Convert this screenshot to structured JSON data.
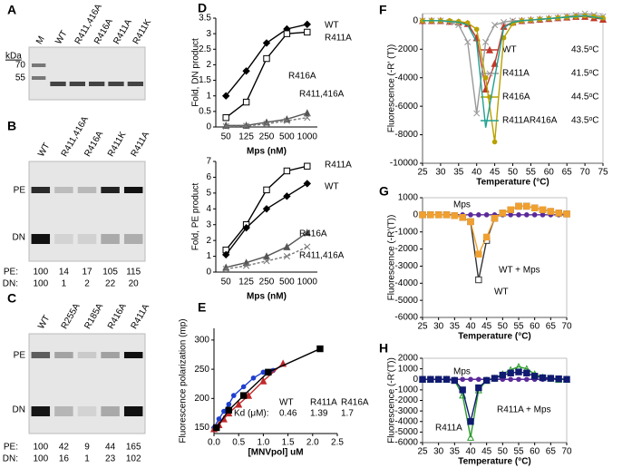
{
  "gels": [
    {
      "panel": "A",
      "lanes": [
        "M",
        "WT",
        "R411,416A",
        "R416A",
        "R411A",
        "R411K"
      ],
      "kda_label": "kDa",
      "markers": [
        70,
        55
      ]
    },
    {
      "panel": "B",
      "lanes": [
        "WT",
        "R411,416A",
        "R416A",
        "R411K",
        "R411A"
      ],
      "bands": [
        "PE",
        "DN"
      ],
      "rows": [
        {
          "label": "PE:",
          "values": [
            100,
            14,
            17,
            105,
            115
          ]
        },
        {
          "label": "DN:",
          "values": [
            100,
            1,
            2,
            22,
            20
          ]
        }
      ]
    },
    {
      "panel": "C",
      "lanes": [
        "WT",
        "R255A",
        "R185A",
        "R416A",
        "R411A"
      ],
      "bands": [
        "PE",
        "DN"
      ],
      "rows": [
        {
          "label": "PE:",
          "values": [
            100,
            42,
            9,
            44,
            165
          ]
        },
        {
          "label": "DN:",
          "values": [
            100,
            16,
            1,
            23,
            102
          ]
        }
      ]
    }
  ],
  "chart_data": [
    {
      "panel": "D",
      "type": "line",
      "y_label": "Fold, DN product",
      "x_label": "Mps (nM)",
      "categories": [
        "50",
        "125",
        "250",
        "500",
        "1000"
      ],
      "ylim": [
        0,
        3.5
      ],
      "yticks": [
        0,
        0.5,
        1,
        1.5,
        2,
        2.5,
        3,
        3.5
      ],
      "series": [
        {
          "name": "WT",
          "color": "#000000",
          "marker": "diamond",
          "values": [
            1.0,
            1.8,
            2.7,
            3.15,
            3.3
          ]
        },
        {
          "name": "R411A",
          "color": "#000000",
          "marker": "square-open",
          "values": [
            0.3,
            0.8,
            2.2,
            3.0,
            3.05
          ]
        },
        {
          "name": "R416A",
          "color": "#555555",
          "marker": "triangle",
          "values": [
            0.05,
            0.05,
            0.15,
            0.25,
            0.45
          ]
        },
        {
          "name": "R411,416A",
          "color": "#777777",
          "marker": "x",
          "dash": true,
          "values": [
            0.02,
            0.03,
            0.1,
            0.2,
            0.3
          ]
        }
      ]
    },
    {
      "panel": "",
      "type": "line",
      "y_label": "Fold, PE product",
      "x_label": "Mps (nM)",
      "categories": [
        "50",
        "125",
        "250",
        "500",
        "1000"
      ],
      "ylim": [
        0,
        7
      ],
      "yticks": [
        0,
        1,
        2,
        3,
        4,
        5,
        6,
        7
      ],
      "series": [
        {
          "name": "R411A",
          "color": "#000000",
          "marker": "square-open",
          "values": [
            1.4,
            3.0,
            5.2,
            6.4,
            6.7
          ]
        },
        {
          "name": "WT",
          "color": "#000000",
          "marker": "diamond",
          "values": [
            1.1,
            2.8,
            4.0,
            4.8,
            5.6
          ]
        },
        {
          "name": "R416A",
          "color": "#555555",
          "marker": "triangle",
          "values": [
            0.3,
            0.6,
            1.0,
            1.6,
            2.5
          ]
        },
        {
          "name": "R411,416A",
          "color": "#777777",
          "marker": "x",
          "dash": true,
          "values": [
            0.2,
            0.4,
            0.7,
            1.0,
            1.6
          ]
        }
      ]
    },
    {
      "panel": "E",
      "type": "scatter",
      "y_label": "Fluorescence polarization (mp)",
      "x_label": "[MNVpol] uM",
      "xlim": [
        0,
        2.5
      ],
      "xticks": [
        {
          "value": 0,
          "label": "0.0"
        },
        0.5,
        {
          "value": 1,
          "label": "1.0"
        },
        1.5,
        {
          "value": 2,
          "label": "2.0"
        },
        2.5
      ],
      "ylim": [
        140,
        320
      ],
      "yticks": [
        150,
        200,
        250,
        300
      ],
      "kd_label": "Kd (μM):",
      "series": [
        {
          "name": "WT",
          "color": "#1f3fd0",
          "marker": "circle",
          "kd": 0.46,
          "x": [
            0,
            0.1,
            0.2,
            0.3,
            0.4,
            0.6,
            0.8,
            1.0,
            1.2
          ],
          "values": [
            150,
            165,
            178,
            190,
            205,
            220,
            235,
            245,
            248
          ]
        },
        {
          "name": "R411A",
          "color": "#c0282a",
          "marker": "triangle",
          "kd": 1.39,
          "x": [
            0,
            0.1,
            0.2,
            0.3,
            0.5,
            0.7,
            1.0,
            1.4
          ],
          "values": [
            148,
            155,
            165,
            175,
            190,
            205,
            230,
            260
          ]
        },
        {
          "name": "R416A",
          "color": "#000000",
          "marker": "square",
          "kd": 1.7,
          "x": [
            0.05,
            0.3,
            0.6,
            1.1,
            2.15
          ],
          "values": [
            150,
            180,
            205,
            245,
            285
          ]
        }
      ]
    },
    {
      "panel": "F",
      "type": "line",
      "y_label": "Fluorescence (-R' (T))",
      "x_label": "Temperature (°C)",
      "x": [
        25,
        27.5,
        30,
        32.5,
        35,
        37.5,
        40,
        42.5,
        45,
        47.5,
        50,
        52.5,
        55,
        57.5,
        60,
        62.5,
        65,
        67.5,
        70,
        72.5,
        75
      ],
      "xlim": [
        25,
        75
      ],
      "xticks": [
        25,
        30,
        35,
        40,
        45,
        50,
        55,
        60,
        65,
        70,
        75
      ],
      "ylim": [
        -10000,
        500
      ],
      "yticks": [
        0,
        -2000,
        -4000,
        -6000,
        -8000,
        -10000
      ],
      "legend": "center right",
      "series": [
        {
          "name": "WT",
          "tm": "43.5ᵒC",
          "color": "#c0392b",
          "marker": "triangle",
          "values": [
            0,
            0,
            0,
            -50,
            -100,
            -200,
            -1200,
            -4800,
            -3000,
            -400,
            -100,
            0,
            50,
            100,
            150,
            200,
            250,
            300,
            300,
            200,
            100
          ]
        },
        {
          "name": "R411A",
          "tm": "41.5ᵒC",
          "color": "#999999",
          "marker": "x",
          "values": [
            0,
            0,
            0,
            -100,
            -300,
            -1500,
            -6500,
            -1500,
            -300,
            -100,
            0,
            0,
            50,
            100,
            150,
            200,
            300,
            400,
            500,
            400,
            300
          ]
        },
        {
          "name": "R416A",
          "tm": "44.5ᵒC",
          "color": "#b8a000",
          "marker": "circle",
          "values": [
            0,
            0,
            0,
            0,
            -50,
            -150,
            -600,
            -4000,
            -8500,
            -1200,
            -200,
            0,
            50,
            100,
            150,
            200,
            250,
            300,
            350,
            300,
            200
          ]
        },
        {
          "name": "R411AR416A",
          "tm": "43.5ᵒC",
          "color": "#20a090",
          "marker": "none",
          "values": [
            0,
            0,
            0,
            -50,
            -100,
            -300,
            -1500,
            -7500,
            -4000,
            -500,
            -100,
            0,
            50,
            100,
            150,
            200,
            250,
            300,
            350,
            250,
            150
          ]
        }
      ]
    },
    {
      "panel": "G",
      "type": "line",
      "y_label": "Fluorescence (-R'(T))",
      "x_label": "Temperature (°C)",
      "x": [
        25,
        27.5,
        30,
        32.5,
        35,
        37.5,
        40,
        42.5,
        45,
        47.5,
        50,
        52.5,
        55,
        57.5,
        60,
        62.5,
        65,
        67.5,
        70
      ],
      "xlim": [
        25,
        70
      ],
      "xticks": [
        25,
        30,
        35,
        40,
        45,
        50,
        55,
        60,
        65,
        70
      ],
      "ylim": [
        -6000,
        1000
      ],
      "yticks": [
        1000,
        0,
        -1000,
        -2000,
        -3000,
        -4000,
        -5000,
        -6000
      ],
      "series": [
        {
          "name": "Mps",
          "color": "#5b2a9a",
          "marker": "circle",
          "values": [
            0,
            0,
            0,
            0,
            0,
            0,
            0,
            0,
            0,
            0,
            0,
            0,
            0,
            0,
            0,
            0,
            0,
            0,
            0
          ]
        },
        {
          "name": "WT",
          "color": "#333333",
          "label_color": "#8b1a1a",
          "marker": "square-open",
          "values": [
            0,
            0,
            0,
            0,
            -50,
            -150,
            -400,
            -3800,
            -1500,
            -200,
            100,
            300,
            500,
            500,
            400,
            300,
            200,
            100,
            50
          ]
        },
        {
          "name": "WT + Mps",
          "color": "#f0a030",
          "marker": "square",
          "values": [
            0,
            0,
            0,
            0,
            -50,
            -150,
            -400,
            -2300,
            -1300,
            -200,
            100,
            300,
            500,
            500,
            400,
            300,
            200,
            100,
            50
          ]
        }
      ]
    },
    {
      "panel": "H",
      "type": "line",
      "y_label": "Fluorescence (-R'(T))",
      "x_label": "Temperature (°C)",
      "x": [
        25,
        27.5,
        30,
        32.5,
        35,
        37.5,
        40,
        42.5,
        45,
        47.5,
        50,
        52.5,
        55,
        57.5,
        60,
        62.5,
        65,
        67.5,
        70
      ],
      "xlim": [
        25,
        70
      ],
      "xticks": [
        25,
        30,
        35,
        40,
        45,
        50,
        55,
        60,
        65,
        70
      ],
      "ylim": [
        -6000,
        2000
      ],
      "yticks": [
        2000,
        1000,
        0,
        -1000,
        -2000,
        -3000,
        -4000,
        -5000,
        -6000
      ],
      "series": [
        {
          "name": "Mps",
          "color": "#5b2a9a",
          "marker": "circle",
          "values": [
            0,
            0,
            0,
            0,
            0,
            0,
            0,
            0,
            0,
            0,
            0,
            0,
            0,
            0,
            0,
            0,
            0,
            0,
            0
          ]
        },
        {
          "name": "R411A",
          "color": "#2a9a2a",
          "marker": "triangle-open",
          "values": [
            0,
            0,
            0,
            0,
            -100,
            -1500,
            -5500,
            -1000,
            -100,
            100,
            500,
            900,
            1200,
            1000,
            500,
            200,
            100,
            0,
            0
          ]
        },
        {
          "name": "R411A + Mps",
          "color": "#101a70",
          "marker": "square",
          "values": [
            0,
            0,
            0,
            0,
            -100,
            -1000,
            -4000,
            -800,
            -100,
            100,
            400,
            600,
            700,
            600,
            300,
            150,
            100,
            50,
            0
          ]
        }
      ]
    }
  ]
}
